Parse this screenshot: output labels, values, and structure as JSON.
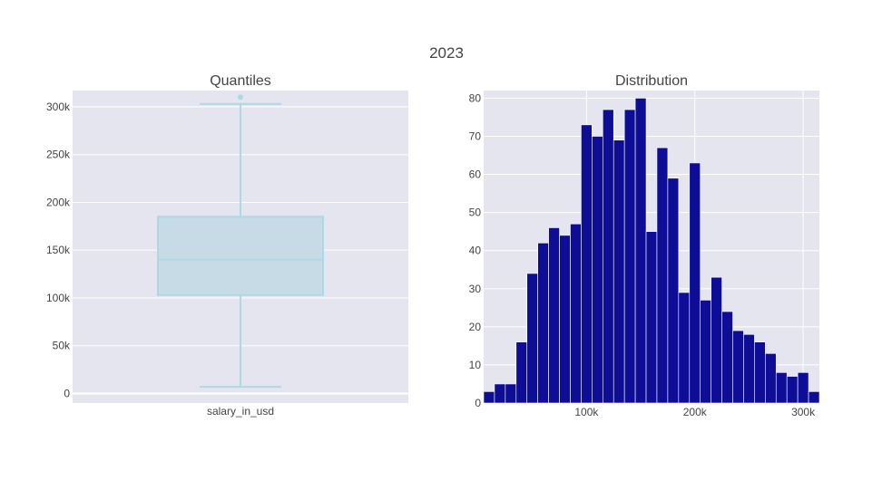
{
  "title": "2023",
  "chart_data": [
    {
      "type": "box",
      "title": "Quantiles",
      "category": "salary_in_usd",
      "stats": {
        "lowerfence": 7000,
        "q1": 103000,
        "median": 140000,
        "q3": 185000,
        "upperfence": 303000
      },
      "outliers": [
        310000
      ],
      "ylim": [
        -10000,
        317000
      ],
      "yticks": [
        0,
        50000,
        100000,
        150000,
        200000,
        250000,
        300000
      ],
      "ytick_labels": [
        "0",
        "50k",
        "100k",
        "150k",
        "200k",
        "250k",
        "300k"
      ],
      "grid": true,
      "colors": {
        "box_fill": "#c6dbe6",
        "box_line": "#add8e6",
        "plot_bg": "#e5e5f0"
      }
    },
    {
      "type": "bar",
      "title": "Distribution",
      "bin_width": 10000,
      "bin_start": 5000,
      "values": [
        3,
        5,
        5,
        16,
        34,
        42,
        46,
        44,
        47,
        73,
        70,
        77,
        69,
        77,
        80,
        45,
        67,
        59,
        29,
        63,
        27,
        33,
        24,
        19,
        18,
        16,
        13,
        8,
        7,
        8,
        3
      ],
      "xlim": [
        5000,
        315000
      ],
      "ylim": [
        0,
        82
      ],
      "xticks": [
        100000,
        200000,
        300000
      ],
      "xtick_labels": [
        "100k",
        "200k",
        "300k"
      ],
      "yticks": [
        0,
        10,
        20,
        30,
        40,
        50,
        60,
        70,
        80
      ],
      "ytick_labels": [
        "0",
        "10",
        "20",
        "30",
        "40",
        "50",
        "60",
        "70",
        "80"
      ],
      "grid": true,
      "colors": {
        "bar": "#0d0d96",
        "plot_bg": "#e5e5f0"
      }
    }
  ]
}
